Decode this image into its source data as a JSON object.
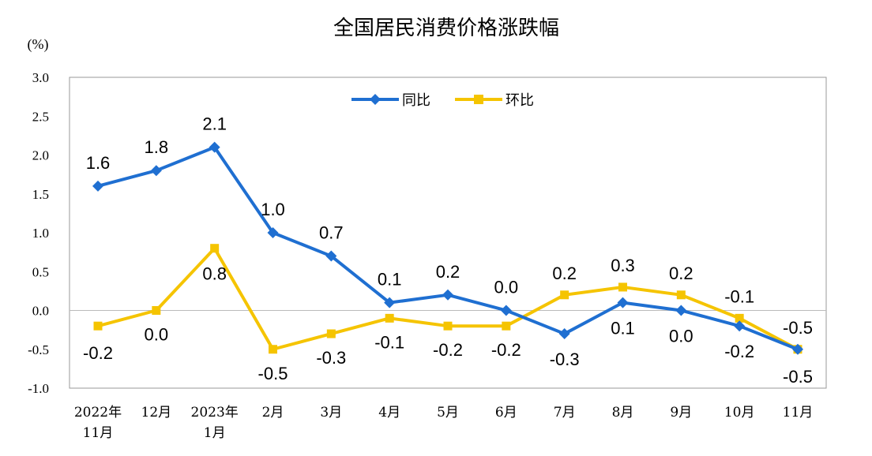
{
  "chart_data": {
    "type": "line",
    "title": "全国居民消费价格涨跌幅",
    "ylabel": "(%)",
    "xlabel": "",
    "ylim": [
      -1.0,
      3.0
    ],
    "yticks": [
      "3.0",
      "2.5",
      "2.0",
      "1.5",
      "1.0",
      "0.5",
      "0.0",
      "-0.5",
      "-1.0"
    ],
    "categories": [
      [
        "2022年",
        "11月"
      ],
      [
        "12月"
      ],
      [
        "2023年",
        "1月"
      ],
      [
        "2月"
      ],
      [
        "3月"
      ],
      [
        "4月"
      ],
      [
        "5月"
      ],
      [
        "6月"
      ],
      [
        "7月"
      ],
      [
        "8月"
      ],
      [
        "9月"
      ],
      [
        "10月"
      ],
      [
        "11月"
      ]
    ],
    "series": [
      {
        "name": "同比",
        "color": "#1f6fd1",
        "marker": "diamond",
        "values": [
          1.6,
          1.8,
          2.1,
          1.0,
          0.7,
          0.1,
          0.2,
          0.0,
          -0.3,
          0.1,
          0.0,
          -0.2,
          -0.5
        ],
        "labels": [
          "1.6",
          "1.8",
          "2.1",
          "1.0",
          "0.7",
          "0.1",
          "0.2",
          "0.0",
          "-0.3",
          "0.1",
          "0.0",
          "-0.2",
          "-0.5"
        ]
      },
      {
        "name": "环比",
        "color": "#f5c400",
        "marker": "square",
        "values": [
          -0.2,
          0.0,
          0.8,
          -0.5,
          -0.3,
          -0.1,
          -0.2,
          -0.2,
          0.2,
          0.3,
          0.2,
          -0.1,
          -0.5
        ],
        "labels": [
          "-0.2",
          "0.0",
          "0.8",
          "-0.5",
          "-0.3",
          "-0.1",
          "-0.2",
          "-0.2",
          "0.2",
          "0.3",
          "0.2",
          "-0.1",
          "-0.5"
        ]
      }
    ],
    "grid": false,
    "legend_position": "top-center"
  }
}
